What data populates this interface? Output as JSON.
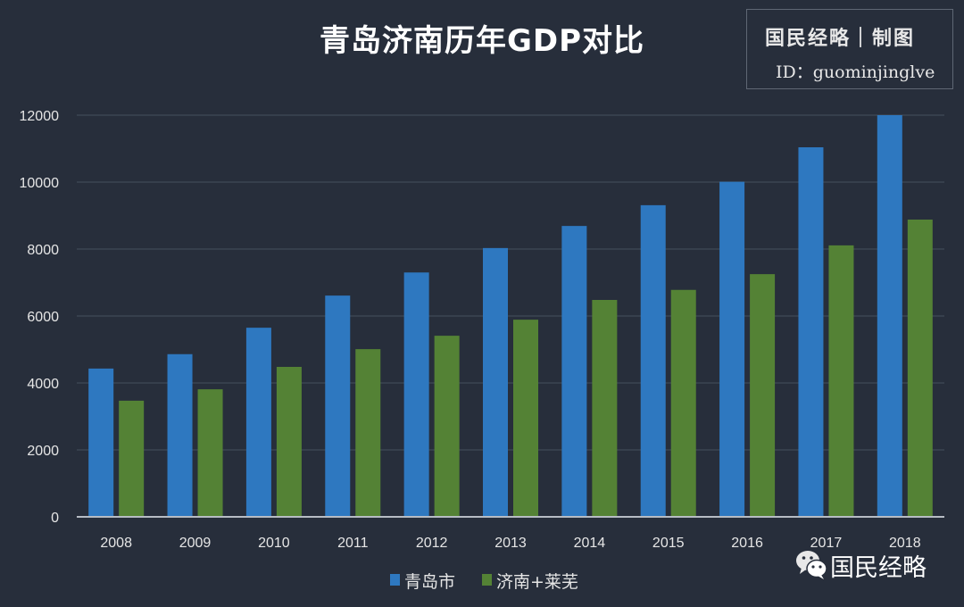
{
  "header": {
    "title": "青岛济南历年GDP对比",
    "credit_line1": "国民经略｜制图",
    "credit_line2": "ID：guominjinglve"
  },
  "watermark": {
    "brand_text": "国民经略",
    "icon": "wechat-icon"
  },
  "colors": {
    "background": "#272e3b",
    "series1": "#2e78c0",
    "series2": "#548235",
    "grid": "#3c4553",
    "axis": "#b7bcc4"
  },
  "chart_data": {
    "type": "bar",
    "title": "青岛济南历年GDP对比",
    "xlabel": "",
    "ylabel": "",
    "categories": [
      "2008",
      "2009",
      "2010",
      "2011",
      "2012",
      "2013",
      "2014",
      "2015",
      "2016",
      "2017",
      "2018"
    ],
    "series": [
      {
        "name": "青岛市",
        "values": [
          4430,
          4860,
          5650,
          6610,
          7300,
          8030,
          8690,
          9310,
          10010,
          11040,
          12000
        ]
      },
      {
        "name": "济南+莱芜",
        "values": [
          3470,
          3810,
          4480,
          5010,
          5410,
          5890,
          6480,
          6780,
          7250,
          8110,
          8880
        ]
      }
    ],
    "ylim": [
      0,
      12000
    ],
    "yticks": [
      "0",
      "2000",
      "4000",
      "6000",
      "8000",
      "10000",
      "12000"
    ],
    "grid": true,
    "legend": "bottom-center"
  }
}
